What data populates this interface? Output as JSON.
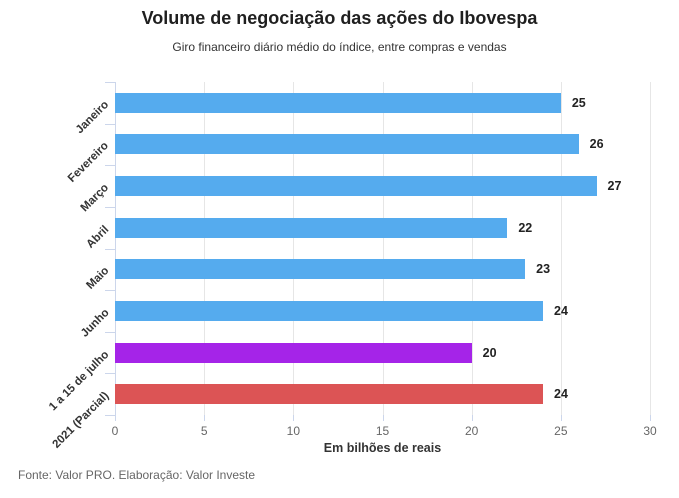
{
  "title": "Volume de negociação das ações do Ibovespa",
  "subtitle": "Giro financeiro diário médio do índice, entre compras e vendas",
  "footer": {
    "source": "Fonte: Valor PRO. Elaboração: Valor Investe"
  },
  "chart_data": {
    "type": "bar",
    "orientation": "horizontal",
    "title": "Volume de negociação das ações do Ibovespa",
    "subtitle": "Giro financeiro diário médio do índice, entre compras e vendas",
    "categories": [
      "Janeiro",
      "Fevereiro",
      "Março",
      "Abril",
      "Maio",
      "Junho",
      "1 a 15 de julho",
      "2021 (Parcial)"
    ],
    "values": [
      25,
      26,
      27,
      22,
      23,
      24,
      20,
      24
    ],
    "bar_colors": [
      "#55abee",
      "#55abee",
      "#55abee",
      "#55abee",
      "#55abee",
      "#55abee",
      "#a524e8",
      "#dc5455"
    ],
    "data_labels": [
      25,
      26,
      27,
      22,
      23,
      24,
      20,
      24
    ],
    "xlabel": "Em bilhões de reais",
    "ylabel": "",
    "xlim": [
      0,
      30
    ],
    "x_ticks": [
      0,
      5,
      10,
      15,
      20,
      25,
      30
    ],
    "grid": true,
    "legend": "none",
    "colors": {
      "default_bar": "#55abee",
      "highlight_july": "#a524e8",
      "highlight_partial": "#dc5455",
      "gridline": "#e6e6e6",
      "axis_line": "#ccd6eb",
      "tick_label": "#666666",
      "value_label": "#222222",
      "category_label": "#333333",
      "title": "#1f1f1f",
      "background": "#ffffff"
    }
  }
}
